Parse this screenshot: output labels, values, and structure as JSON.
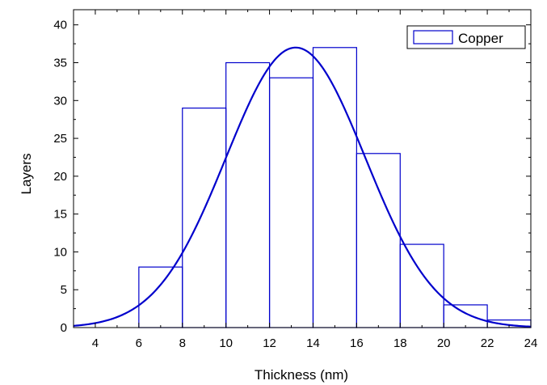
{
  "chart_data": {
    "type": "histogram",
    "xlabel": "Thickness (nm)",
    "ylabel": "Layers",
    "xlim": [
      3,
      24
    ],
    "ylim": [
      0,
      42
    ],
    "x_ticks": [
      4,
      6,
      8,
      10,
      12,
      14,
      16,
      18,
      20,
      22,
      24
    ],
    "y_ticks": [
      0,
      5,
      10,
      15,
      20,
      25,
      30,
      35,
      40
    ],
    "bins": [
      {
        "x0": 6,
        "x1": 8,
        "count": 8
      },
      {
        "x0": 8,
        "x1": 10,
        "count": 29
      },
      {
        "x0": 10,
        "x1": 12,
        "count": 35
      },
      {
        "x0": 12,
        "x1": 14,
        "count": 33
      },
      {
        "x0": 14,
        "x1": 16,
        "count": 37
      },
      {
        "x0": 16,
        "x1": 18,
        "count": 23
      },
      {
        "x0": 18,
        "x1": 20,
        "count": 11
      },
      {
        "x0": 20,
        "x1": 22,
        "count": 3
      },
      {
        "x0": 22,
        "x1": 24,
        "count": 1
      }
    ],
    "fit": {
      "type": "gaussian",
      "amplitude": 37,
      "mean": 13.2,
      "sigma": 3.2
    },
    "legend": {
      "label": "Copper",
      "position": "top-right"
    },
    "colors": {
      "series": "#0000cc",
      "axis": "#000000",
      "background": "#ffffff"
    }
  }
}
